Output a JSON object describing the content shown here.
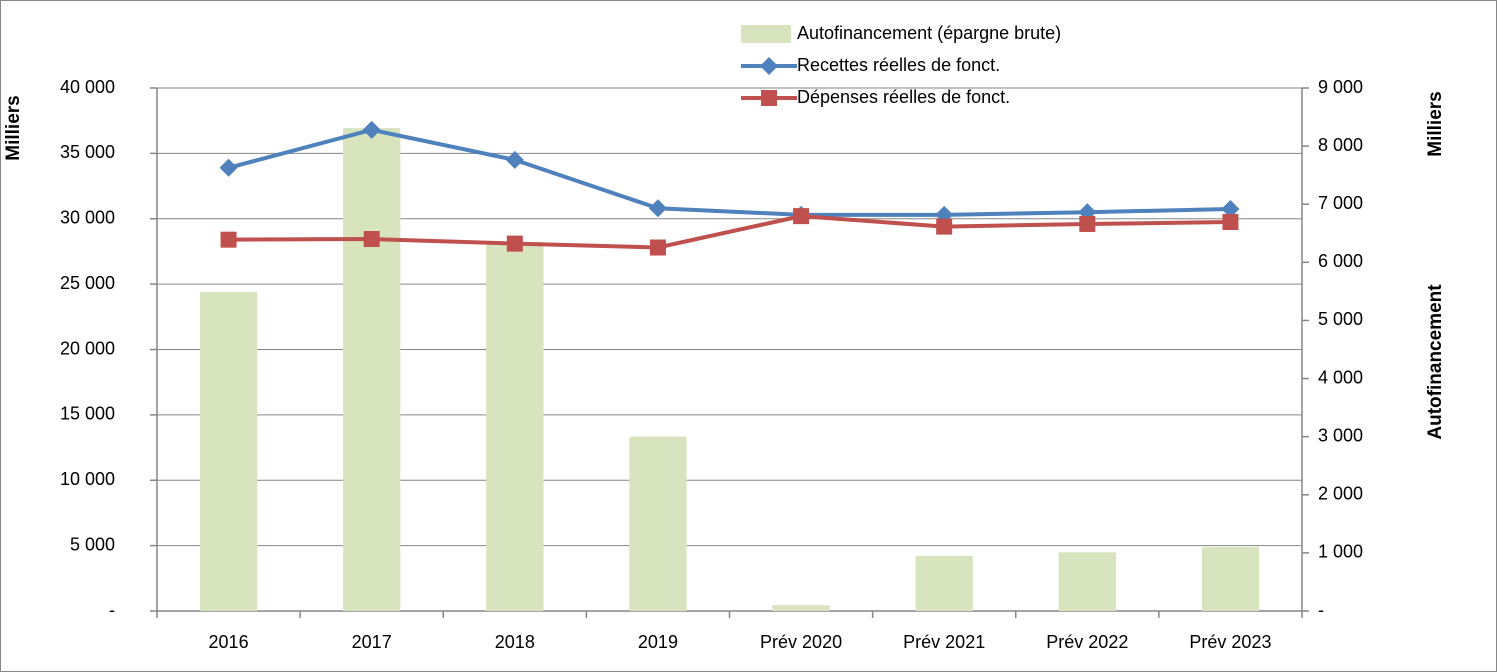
{
  "chart_data": {
    "type": "combo",
    "categories": [
      "2016",
      "2017",
      "2018",
      "2019",
      "Prév 2020",
      "Prév 2021",
      "Prév 2022",
      "Prév 2023"
    ],
    "series": [
      {
        "name": "Autofinancement (épargne brute)",
        "type": "bar",
        "axis": "y2",
        "color": "#d7e4bd",
        "values": [
          5490,
          8310,
          6350,
          3000,
          100,
          950,
          1010,
          1100
        ]
      },
      {
        "name": "Recettes réelles de fonct.",
        "type": "line",
        "marker": "diamond",
        "color": "#4f81bd",
        "values": [
          33900,
          36800,
          34500,
          30800,
          30300,
          30300,
          30500,
          30750
        ]
      },
      {
        "name": "Dépenses réelles de fonct.",
        "type": "line",
        "marker": "square",
        "color": "#c0504d",
        "values": [
          28400,
          28450,
          28100,
          27800,
          30200,
          29400,
          29600,
          29750
        ]
      }
    ],
    "ylabel": "Milliers",
    "y2label": [
      "Milliers",
      "Autofinancement"
    ],
    "ylim": [
      0,
      40000
    ],
    "yticks": [
      {
        "value": 0,
        "label": "-"
      },
      {
        "value": 5000,
        "label": "5 000"
      },
      {
        "value": 10000,
        "label": "10 000"
      },
      {
        "value": 15000,
        "label": "15 000"
      },
      {
        "value": 20000,
        "label": "20 000"
      },
      {
        "value": 25000,
        "label": "25 000"
      },
      {
        "value": 30000,
        "label": "30 000"
      },
      {
        "value": 35000,
        "label": "35 000"
      },
      {
        "value": 40000,
        "label": "40 000"
      }
    ],
    "y2lim": [
      0,
      9000
    ],
    "y2ticks": [
      {
        "value": 0,
        "label": "-"
      },
      {
        "value": 1000,
        "label": "1 000"
      },
      {
        "value": 2000,
        "label": "2 000"
      },
      {
        "value": 3000,
        "label": "3 000"
      },
      {
        "value": 4000,
        "label": "4 000"
      },
      {
        "value": 5000,
        "label": "5 000"
      },
      {
        "value": 6000,
        "label": "6 000"
      },
      {
        "value": 7000,
        "label": "7 000"
      },
      {
        "value": 8000,
        "label": "8 000"
      },
      {
        "value": 9000,
        "label": "9 000"
      }
    ],
    "grid": true
  }
}
